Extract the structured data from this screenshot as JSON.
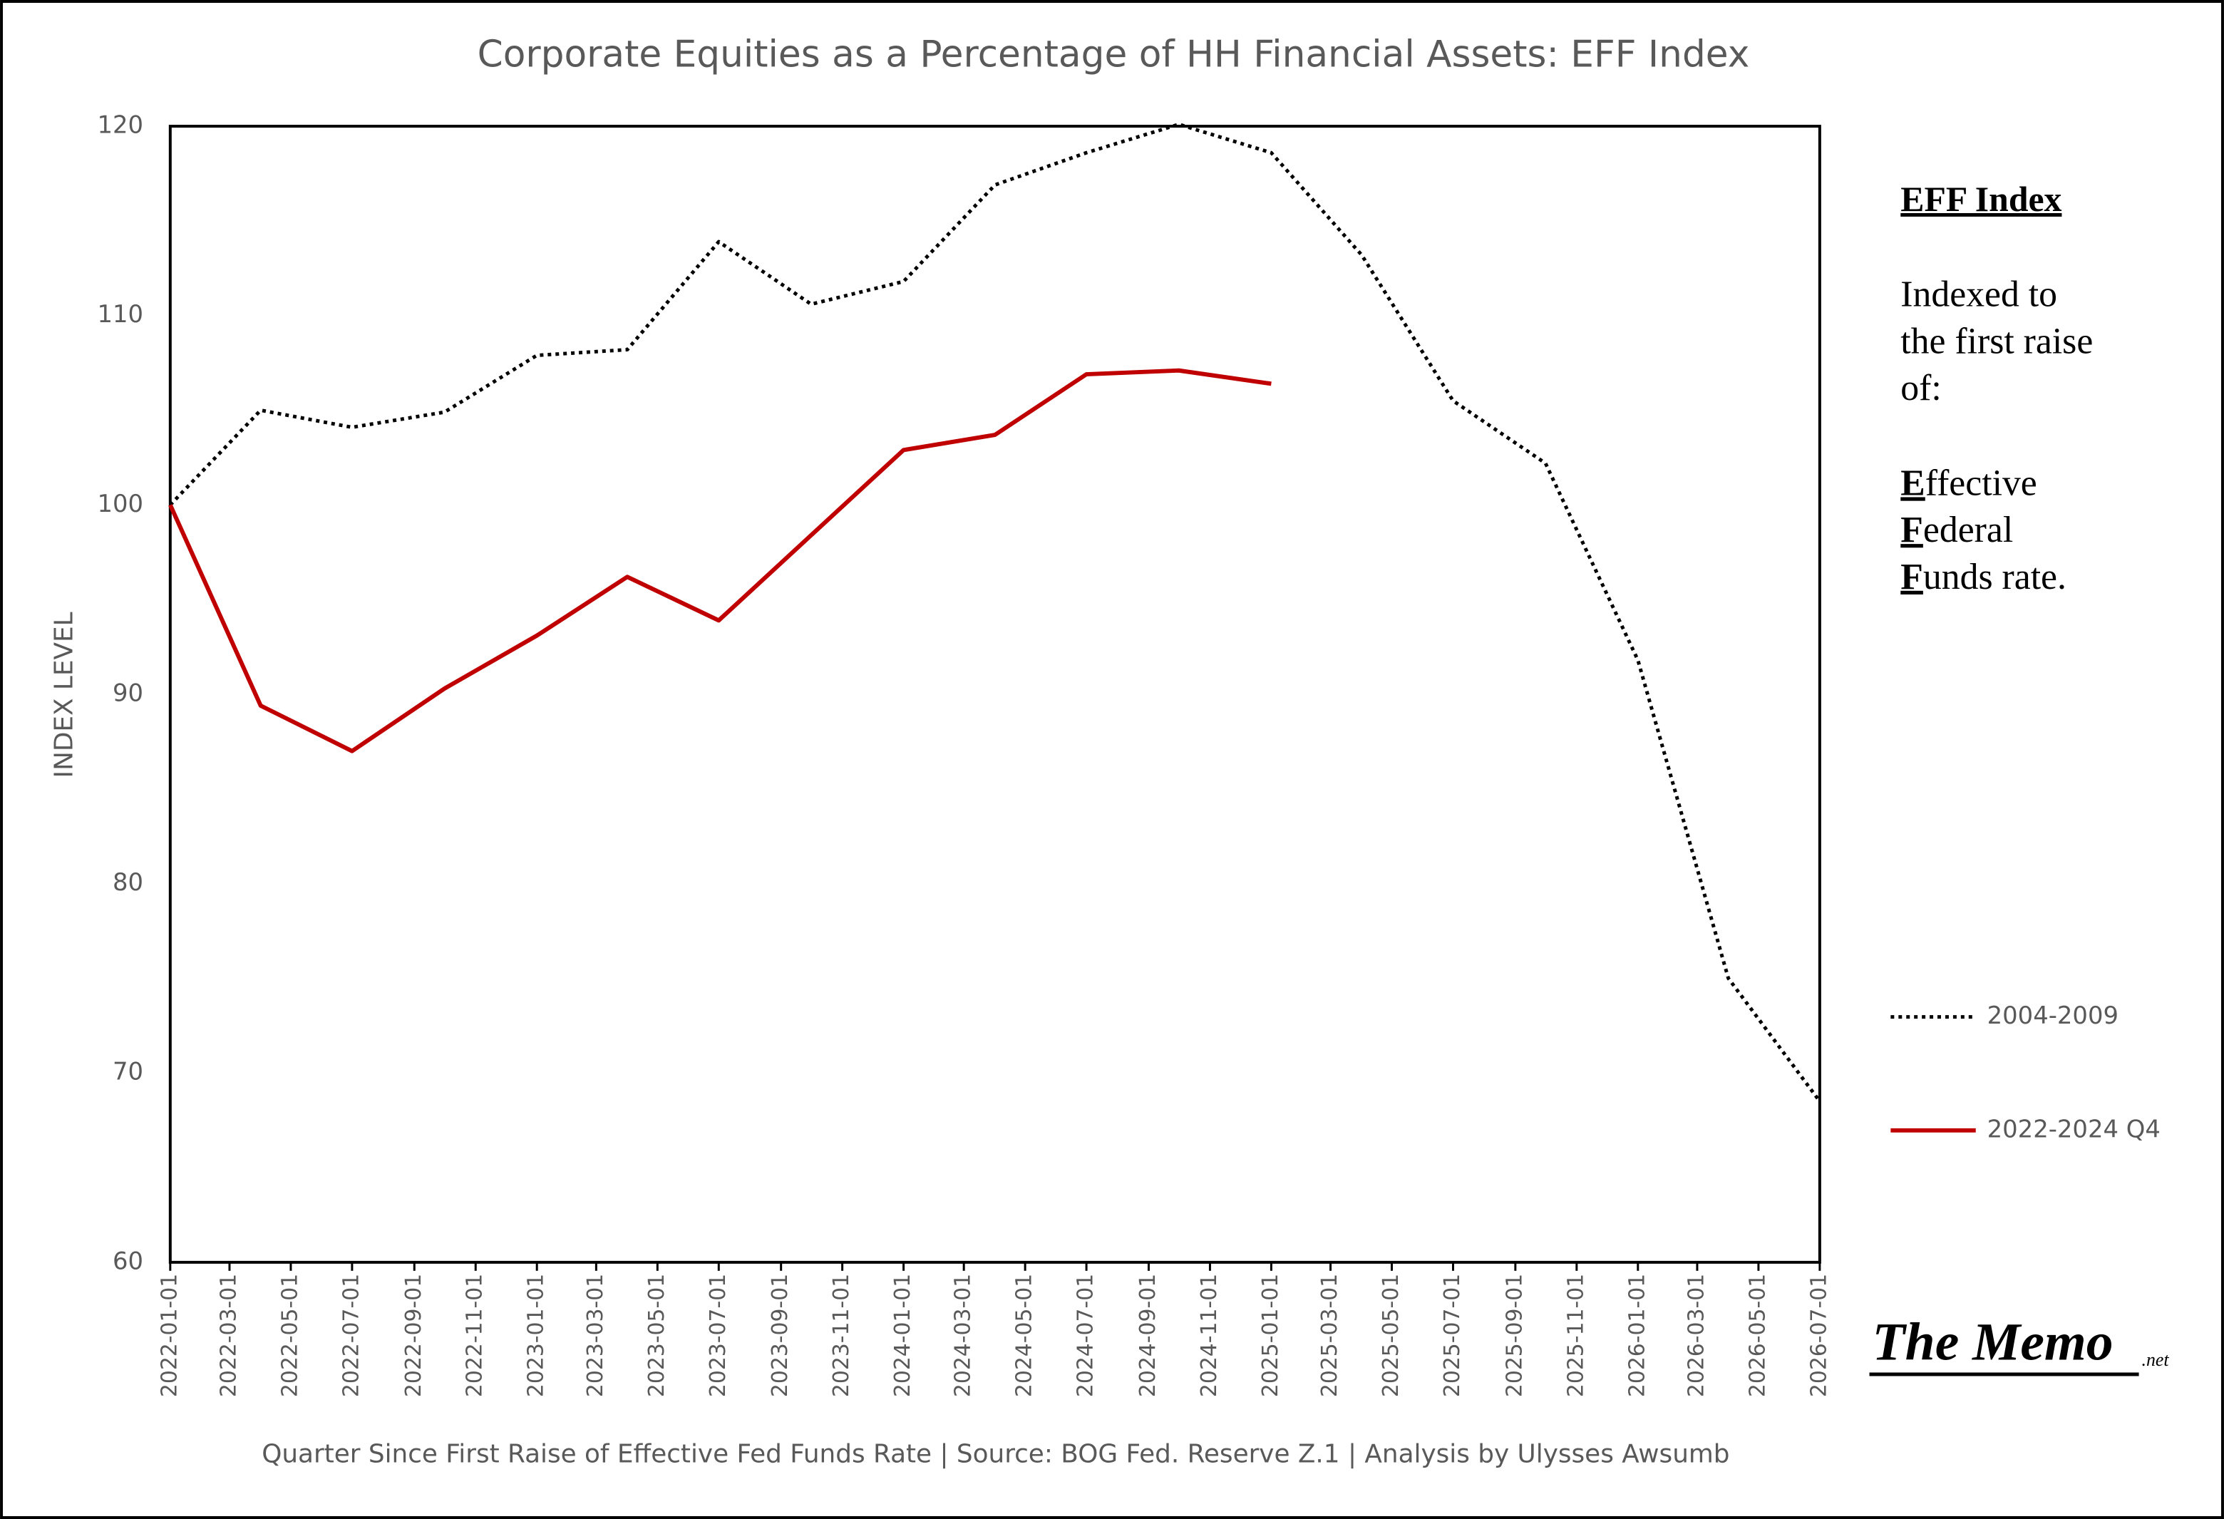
{
  "chart_data": {
    "type": "line",
    "title": "Corporate Equities as a Percentage of HH Financial Assets: EFF Index",
    "x_label": "Quarter Since First Raise of Effective Fed Funds Rate  |  Source: BOG Fed. Reserve Z.1  |  Analysis by Ulysses Awsumb",
    "y_label": "INDEX LEVEL",
    "x": [
      "2022-01-01",
      "2022-04-01",
      "2022-07-01",
      "2022-10-01",
      "2023-01-01",
      "2023-04-01",
      "2023-07-01",
      "2023-10-01",
      "2024-01-01",
      "2024-04-01",
      "2024-07-01",
      "2024-10-01",
      "2025-01-01",
      "2025-04-01",
      "2025-07-01",
      "2025-10-01",
      "2026-01-01",
      "2026-04-01",
      "2026-07-01"
    ],
    "series": [
      {
        "name": "2004-2009",
        "color": "#000000",
        "dash": "dotted",
        "values": [
          100,
          105.0,
          104.1,
          104.9,
          107.9,
          108.2,
          113.9,
          110.6,
          111.8,
          116.9,
          118.6,
          120.1,
          118.6,
          113.2,
          105.5,
          102.2,
          91.8,
          75.0,
          68.5
        ]
      },
      {
        "name": "2022-2024 Q4",
        "color": "#c00000",
        "dash": "solid",
        "values": [
          100,
          89.4,
          87.0,
          90.3,
          93.1,
          96.2,
          93.9,
          98.4,
          102.9,
          103.7,
          106.9,
          107.1,
          106.4,
          null,
          null,
          null,
          null,
          null,
          null
        ]
      }
    ],
    "xlim": [
      "2022-01-01",
      "2026-07-01"
    ],
    "xticks": [
      "2022-01-01",
      "2022-03-01",
      "2022-05-01",
      "2022-07-01",
      "2022-09-01",
      "2022-11-01",
      "2023-01-01",
      "2023-03-01",
      "2023-05-01",
      "2023-07-01",
      "2023-09-01",
      "2023-11-01",
      "2024-01-01",
      "2024-03-01",
      "2024-05-01",
      "2024-07-01",
      "2024-09-01",
      "2024-11-01",
      "2025-01-01",
      "2025-03-01",
      "2025-05-01",
      "2025-07-01",
      "2025-09-01",
      "2025-11-01",
      "2026-01-01",
      "2026-03-01",
      "2026-05-01",
      "2026-07-01"
    ],
    "ylim": [
      60,
      120
    ],
    "yticks": [
      60,
      70,
      80,
      90,
      100,
      110,
      120
    ],
    "grid": false,
    "legend": "right",
    "annotation": {
      "heading": "EFF Index",
      "lines": [
        "Indexed to",
        "the first raise",
        "of:"
      ],
      "terms": [
        "Effective",
        "Federal",
        "Funds rate."
      ]
    },
    "logo": {
      "name": "The Memo",
      "suffix": ".net"
    }
  }
}
